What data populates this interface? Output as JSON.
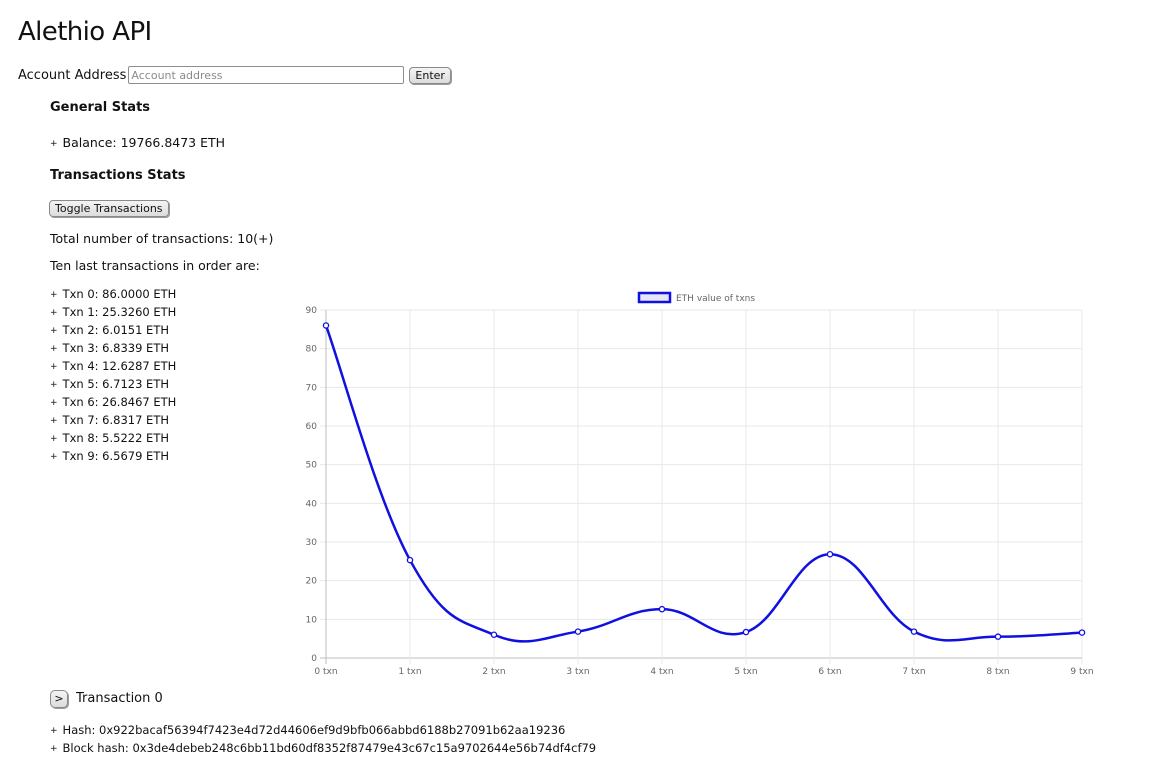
{
  "header": {
    "title": "Alethio API"
  },
  "address_form": {
    "label": "Account Address",
    "placeholder": "Account address",
    "value": "",
    "enter_label": "Enter"
  },
  "general_stats": {
    "heading": "General Stats",
    "balance": "Balance: 19766.8473 ETH"
  },
  "transactions_stats": {
    "heading": "Transactions Stats",
    "toggle_label": "Toggle Transactions",
    "total": "Total number of transactions: 10(+)",
    "last_ten_intro": "Ten last transactions in order are:",
    "items": [
      "Txn 0: 86.0000 ETH",
      "Txn 1: 25.3260 ETH",
      "Txn 2: 6.0151 ETH",
      "Txn 3: 6.8339 ETH",
      "Txn 4: 12.6287 ETH",
      "Txn 5: 6.7123 ETH",
      "Txn 6: 26.8467 ETH",
      "Txn 7: 6.8317 ETH",
      "Txn 8: 5.5222 ETH",
      "Txn 9: 6.5679 ETH"
    ]
  },
  "chart_data": {
    "type": "line",
    "title": "",
    "xlabel": "",
    "ylabel": "",
    "categories": [
      "0 txn",
      "1 txn",
      "2 txn",
      "3 txn",
      "4 txn",
      "5 txn",
      "6 txn",
      "7 txn",
      "8 txn",
      "9 txn"
    ],
    "series": [
      {
        "name": "ETH value of txns",
        "values": [
          86.0,
          25.326,
          6.0151,
          6.8339,
          12.6287,
          6.7123,
          26.8467,
          6.8317,
          5.5222,
          6.5679
        ]
      }
    ],
    "ylim": [
      0,
      90
    ],
    "yticks": [
      0,
      10,
      20,
      30,
      40,
      50,
      60,
      70,
      80,
      90
    ],
    "grid": true,
    "legend": "top-center",
    "line_color": "#1010e0",
    "legend_fill": "#e6e6f5"
  },
  "transaction_detail": {
    "expand_label": ">",
    "title": "Transaction 0",
    "hash": "Hash: 0x922bacaf56394f7423e4d72d44606ef9d9bfb066abbd6188b27091b62aa19236",
    "block_hash": "Block hash: 0x3de4debeb248c6bb11bd60df8352f87479e43c67c15a9702644e56b74df4cf79"
  }
}
